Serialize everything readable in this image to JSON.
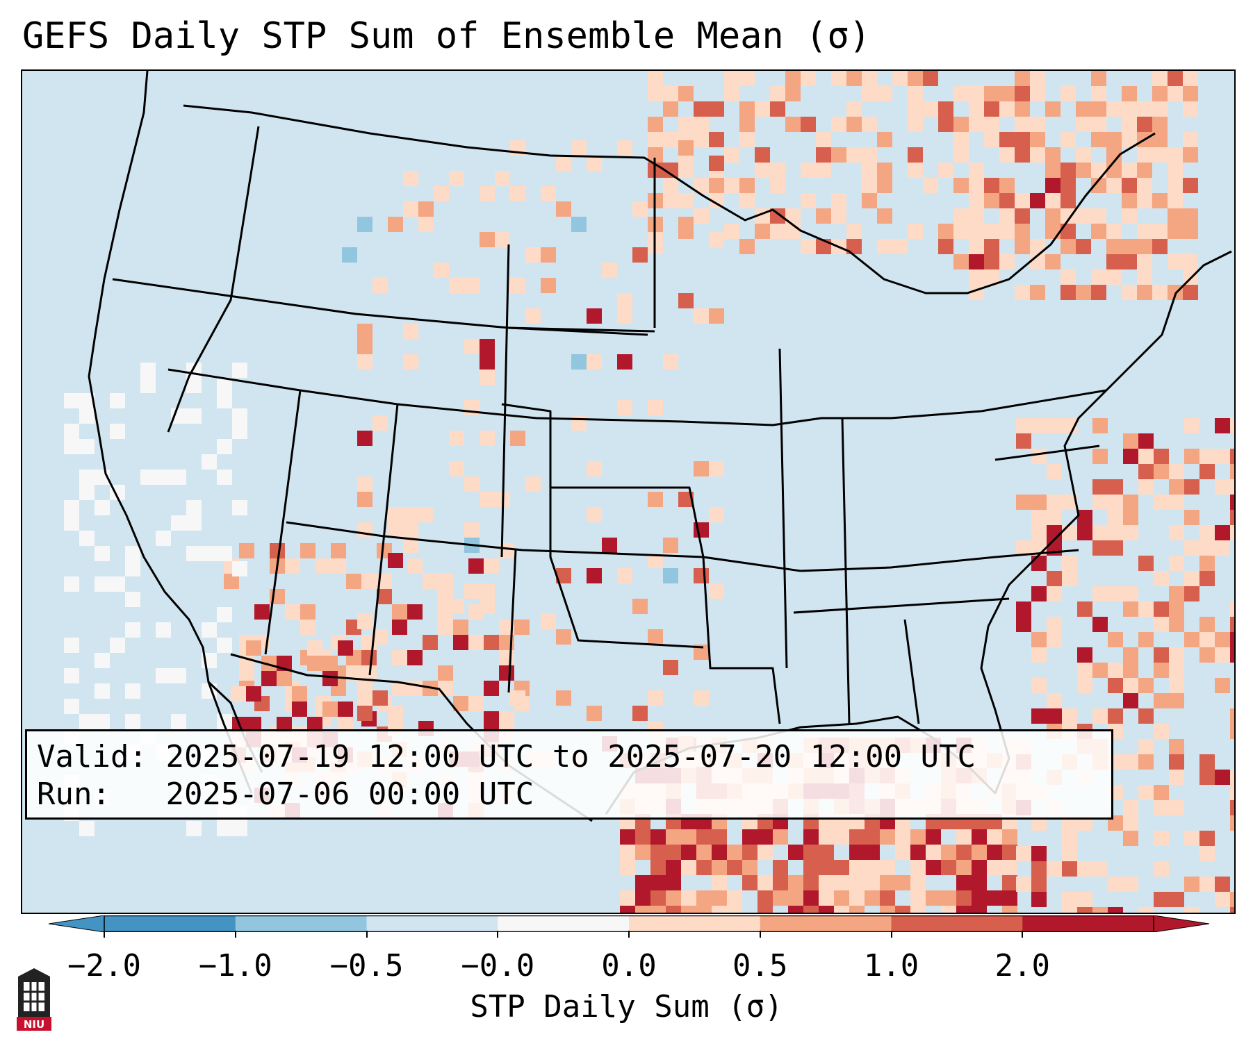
{
  "title": "GEFS Daily STP Sum of Ensemble Mean (σ)",
  "info": {
    "valid_label": "Valid:",
    "valid_value": "2025-07-19 12:00 UTC to 2025-07-20 12:00 UTC",
    "run_label": "Run:",
    "run_value": "2025-07-06 00:00 UTC"
  },
  "colorbar": {
    "label": "STP Daily Sum (σ)",
    "ticks": [
      "−2.0",
      "−1.0",
      "−0.5",
      "−0.0",
      "0.0",
      "0.5",
      "1.0",
      "2.0"
    ],
    "colors": [
      "#4393c3",
      "#92c5de",
      "#d1e5f0",
      "#f7f7f7",
      "#fddbc7",
      "#f4a582",
      "#d6604d",
      "#b2182b"
    ],
    "extend": "both"
  },
  "logo": {
    "text": "NIU"
  },
  "icons": {
    "logo": "niu-tower-icon"
  },
  "map_colors": {
    "background": "#d1e5f0",
    "border": "#000000"
  }
}
